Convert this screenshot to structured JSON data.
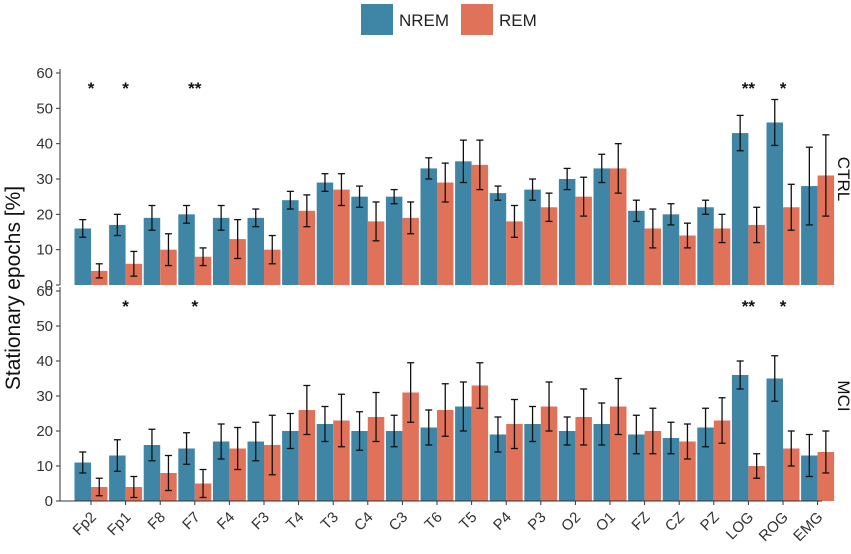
{
  "chart_data": {
    "type": "bar",
    "ylabel": "Stationary epochs [%]",
    "ylim": [
      0,
      60
    ],
    "yticks": [
      0,
      10,
      20,
      30,
      40,
      50,
      60
    ],
    "legend": {
      "position": "top-center",
      "entries": [
        "NREM",
        "REM"
      ]
    },
    "colors": {
      "NREM": "#3f86a6",
      "REM": "#e0725a",
      "errorbar": "#111111",
      "axis": "#333333"
    },
    "categories": [
      "Fp2",
      "Fp1",
      "F8",
      "F7",
      "F4",
      "F3",
      "T4",
      "T3",
      "C4",
      "C3",
      "T6",
      "T5",
      "P4",
      "P3",
      "O2",
      "O1",
      "FZ",
      "CZ",
      "PZ",
      "LOG",
      "ROG",
      "EMG"
    ],
    "panels": [
      {
        "label": "CTRL",
        "series": [
          {
            "name": "NREM",
            "values": [
              16,
              17,
              19,
              20,
              19,
              19,
              24,
              29,
              25,
              25,
              33,
              35,
              26,
              27,
              30,
              33,
              21,
              20,
              22,
              43,
              46,
              28
            ],
            "errors": [
              2.5,
              3,
              3.5,
              2.5,
              3.5,
              2.5,
              2.5,
              2.5,
              3,
              2,
              3,
              6,
              2,
              3,
              3,
              4,
              3,
              3,
              2,
              5,
              6.5,
              11
            ]
          },
          {
            "name": "REM",
            "values": [
              4,
              6,
              10,
              8,
              13,
              10,
              21,
              27,
              18,
              19,
              29,
              34,
              18,
              22,
              25,
              33,
              16,
              14,
              16,
              17,
              22,
              31
            ],
            "errors": [
              2,
              3.5,
              4.5,
              2.5,
              5.5,
              4,
              4.5,
              4.5,
              5.5,
              4.5,
              5.5,
              7,
              4.5,
              4,
              5.5,
              7,
              5.5,
              3.5,
              4,
              5,
              6.5,
              11.5
            ]
          }
        ],
        "significance": [
          {
            "category": "Fp2",
            "marker": "*"
          },
          {
            "category": "Fp1",
            "marker": "*"
          },
          {
            "category": "F7",
            "marker": "**"
          },
          {
            "category": "LOG",
            "marker": "**"
          },
          {
            "category": "ROG",
            "marker": "*"
          }
        ]
      },
      {
        "label": "MCI",
        "series": [
          {
            "name": "NREM",
            "values": [
              11,
              13,
              16,
              15,
              17,
              17,
              20,
              22,
              20,
              20,
              21,
              27,
              19,
              22,
              20,
              22,
              19,
              18,
              21,
              36,
              35,
              13
            ],
            "errors": [
              3,
              4.5,
              4.5,
              4.5,
              5,
              5.5,
              5,
              5,
              5.5,
              4.5,
              5,
              7,
              5,
              5,
              4,
              6,
              5.5,
              4.5,
              5.5,
              4,
              6.5,
              6
            ]
          },
          {
            "name": "REM",
            "values": [
              4,
              4,
              8,
              5,
              15,
              16,
              26,
              23,
              24,
              31,
              26,
              33,
              22,
              27,
              24,
              27,
              20,
              17,
              23,
              10,
              15,
              14
            ],
            "errors": [
              2.5,
              3,
              5,
              4,
              6,
              8.5,
              7,
              7.5,
              7,
              8.5,
              7.5,
              6.5,
              7,
              7,
              8,
              8,
              6.5,
              5,
              6.5,
              3.5,
              5,
              6
            ]
          }
        ],
        "significance": [
          {
            "category": "Fp1",
            "marker": "*"
          },
          {
            "category": "F7",
            "marker": "*"
          },
          {
            "category": "LOG",
            "marker": "**"
          },
          {
            "category": "ROG",
            "marker": "*"
          }
        ]
      }
    ]
  }
}
